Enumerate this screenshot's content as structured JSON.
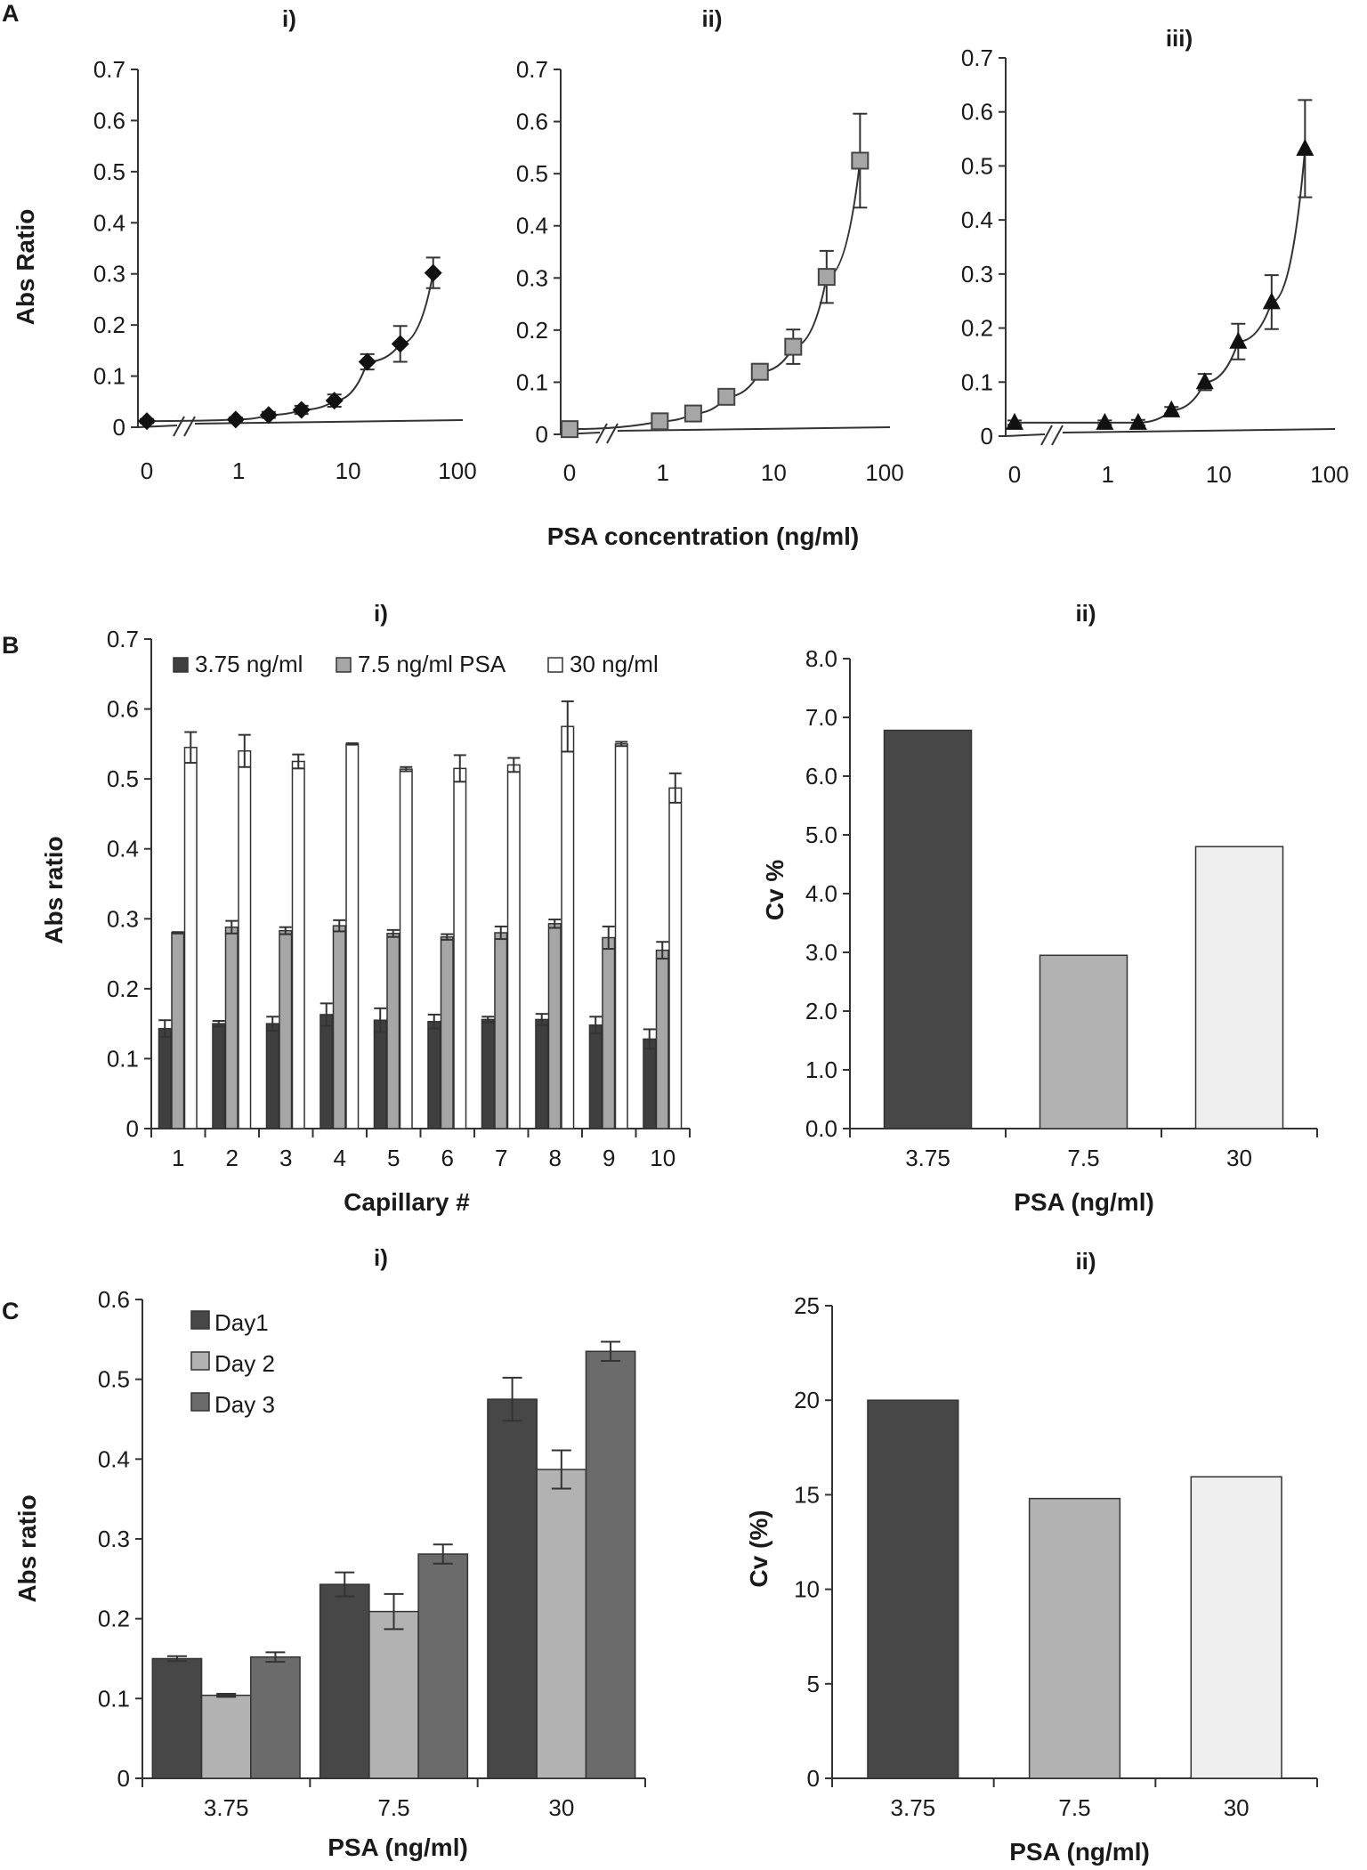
{
  "panel_labels": [
    "A",
    "B",
    "C"
  ],
  "chart_data": [
    {
      "id": "A-i",
      "type": "scatter",
      "title": "i)",
      "ylabel": "Abs Ratio",
      "xlabel": "",
      "ylim": [
        0,
        0.7
      ],
      "yticks": [
        "0",
        "0.1",
        "0.2",
        "0.3",
        "0.4",
        "0.5",
        "0.6",
        "0.7"
      ],
      "xticks": [
        "0",
        "1",
        "10",
        "100"
      ],
      "x": [
        0,
        0.94,
        1.88,
        3.75,
        7.5,
        15,
        30,
        60
      ],
      "y": [
        0.012,
        0.015,
        0.024,
        0.034,
        0.052,
        0.128,
        0.163,
        0.302
      ],
      "err": [
        0.004,
        0.004,
        0.006,
        0.008,
        0.012,
        0.015,
        0.035,
        0.03
      ],
      "marker": "diamond",
      "marker_color": "#111111"
    },
    {
      "id": "A-ii",
      "type": "scatter",
      "title": "ii)",
      "xlabel": "PSA concentration (ng/ml)",
      "ylim": [
        0,
        0.7
      ],
      "yticks": [
        "0",
        "0.1",
        "0.2",
        "0.3",
        "0.4",
        "0.5",
        "0.6",
        "0.7"
      ],
      "xticks": [
        "0",
        "1",
        "10",
        "100"
      ],
      "x": [
        0,
        0.94,
        1.88,
        3.75,
        7.5,
        15,
        30,
        60
      ],
      "y": [
        0.01,
        0.025,
        0.04,
        0.072,
        0.12,
        0.168,
        0.302,
        0.525
      ],
      "err": [
        0.003,
        0.004,
        0.004,
        0.006,
        0.015,
        0.033,
        0.05,
        0.09
      ],
      "marker": "square",
      "marker_color": "#a6a6a6"
    },
    {
      "id": "A-iii",
      "type": "scatter",
      "title": "iii)",
      "ylim": [
        0,
        0.7
      ],
      "yticks": [
        "0",
        "0.1",
        "0.2",
        "0.3",
        "0.4",
        "0.5",
        "0.6",
        "0.7"
      ],
      "xticks": [
        "0",
        "1",
        "10",
        "100"
      ],
      "x": [
        0,
        0.94,
        1.88,
        3.75,
        7.5,
        15,
        30,
        60
      ],
      "y": [
        0.025,
        0.025,
        0.025,
        0.048,
        0.1,
        0.175,
        0.248,
        0.532
      ],
      "err": [
        0.004,
        0.004,
        0.005,
        0.006,
        0.015,
        0.033,
        0.05,
        0.09
      ],
      "marker": "triangle",
      "marker_color": "#111111"
    },
    {
      "id": "B-i",
      "type": "bar",
      "title": "i)",
      "xlabel": "Capillary #",
      "ylabel": "Abs ratio",
      "ylim": [
        0,
        0.7
      ],
      "yticks": [
        "0",
        "0.1",
        "0.2",
        "0.3",
        "0.4",
        "0.5",
        "0.6",
        "0.7"
      ],
      "categories": [
        "1",
        "2",
        "3",
        "4",
        "5",
        "6",
        "7",
        "8",
        "9",
        "10"
      ],
      "series": [
        {
          "name": "3.75 ng/ml",
          "color": "#3f3f3f",
          "values": [
            0.143,
            0.15,
            0.15,
            0.163,
            0.155,
            0.153,
            0.156,
            0.156,
            0.148,
            0.128
          ],
          "err": [
            0.012,
            0.004,
            0.01,
            0.016,
            0.017,
            0.01,
            0.004,
            0.008,
            0.012,
            0.014
          ]
        },
        {
          "name": "7.5 ng/ml PSA",
          "color": "#a6a6a6",
          "values": [
            0.28,
            0.288,
            0.283,
            0.29,
            0.279,
            0.274,
            0.28,
            0.293,
            0.273,
            0.255
          ],
          "err": [
            0.001,
            0.009,
            0.005,
            0.008,
            0.005,
            0.004,
            0.009,
            0.006,
            0.016,
            0.012
          ]
        },
        {
          "name": "30 ng/ml",
          "color": "#ffffff",
          "values": [
            0.545,
            0.54,
            0.525,
            0.55,
            0.514,
            0.515,
            0.52,
            0.575,
            0.55,
            0.487
          ],
          "err": [
            0.022,
            0.023,
            0.01,
            0.001,
            0.003,
            0.019,
            0.01,
            0.036,
            0.003,
            0.021
          ]
        }
      ],
      "legend": "top"
    },
    {
      "id": "B-ii",
      "type": "bar",
      "title": "ii)",
      "xlabel": "PSA (ng/ml)",
      "ylabel": "Cv %",
      "ylim": [
        0,
        8
      ],
      "yticks": [
        "0.0",
        "1.0",
        "2.0",
        "3.0",
        "4.0",
        "5.0",
        "6.0",
        "7.0",
        "8.0"
      ],
      "categories": [
        "3.75",
        "7.5",
        "30"
      ],
      "values": [
        6.78,
        2.95,
        4.8
      ],
      "colors": [
        "#474747",
        "#b2b2b2",
        "#efefef"
      ]
    },
    {
      "id": "C-i",
      "type": "bar",
      "title": "i)",
      "xlabel": "PSA (ng/ml)",
      "ylabel": "Abs ratio",
      "ylim": [
        0,
        0.6
      ],
      "yticks": [
        "0",
        "0.1",
        "0.2",
        "0.3",
        "0.4",
        "0.5",
        "0.6"
      ],
      "categories": [
        "3.75",
        "7.5",
        "30"
      ],
      "series": [
        {
          "name": "Day1",
          "color": "#474747",
          "values": [
            0.15,
            0.243,
            0.475
          ],
          "err": [
            0.003,
            0.015,
            0.027
          ]
        },
        {
          "name": "Day 2",
          "color": "#b2b2b2",
          "values": [
            0.104,
            0.209,
            0.387
          ],
          "err": [
            0.002,
            0.022,
            0.024
          ]
        },
        {
          "name": "Day 3",
          "color": "#6b6b6b",
          "values": [
            0.152,
            0.281,
            0.535
          ],
          "err": [
            0.006,
            0.012,
            0.012
          ]
        }
      ],
      "legend": "top-left"
    },
    {
      "id": "C-ii",
      "type": "bar",
      "title": "ii)",
      "xlabel": "PSA (ng/ml)",
      "ylabel": "Cv (%)",
      "ylim": [
        0,
        25
      ],
      "yticks": [
        "0",
        "5",
        "10",
        "15",
        "20",
        "25"
      ],
      "categories": [
        "3.75",
        "7.5",
        "30"
      ],
      "values": [
        20.0,
        14.8,
        15.95
      ],
      "colors": [
        "#474747",
        "#b2b2b2",
        "#efefef"
      ]
    }
  ]
}
